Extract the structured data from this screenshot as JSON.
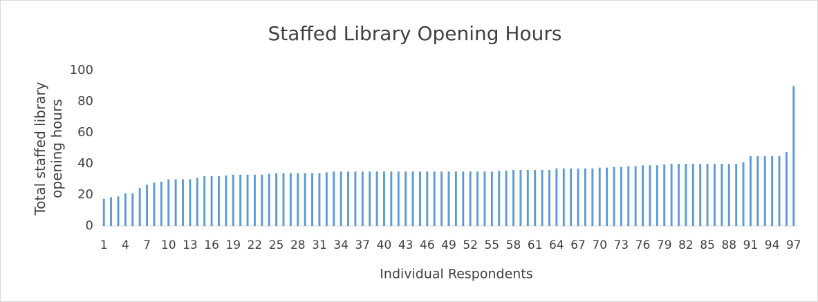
{
  "chart_data": {
    "type": "bar",
    "title": "Staffed Library Opening Hours",
    "x_label": "Individual Respondents",
    "y_label": "Total staffed library opening hours",
    "categories": [
      "1",
      null,
      null,
      "4",
      null,
      null,
      "7",
      null,
      null,
      "10",
      null,
      null,
      "13",
      null,
      null,
      "16",
      null,
      null,
      "19",
      null,
      null,
      "22",
      null,
      null,
      "25",
      null,
      null,
      "28",
      null,
      null,
      "31",
      null,
      null,
      "34",
      null,
      null,
      "37",
      null,
      null,
      "40",
      null,
      null,
      "43",
      null,
      null,
      "46",
      null,
      null,
      "49",
      null,
      null,
      "52",
      null,
      null,
      "55",
      null,
      null,
      "58",
      null,
      null,
      "61",
      null,
      null,
      "64",
      null,
      null,
      "67",
      null,
      null,
      "70",
      null,
      null,
      "73",
      null,
      null,
      "76",
      null,
      null,
      "79",
      null,
      null,
      "82",
      null,
      null,
      "85",
      null,
      null,
      "88",
      null,
      null,
      "91",
      null,
      null,
      "94",
      null,
      null,
      "97"
    ],
    "values": [
      17.5,
      18.5,
      19,
      21,
      21,
      24.5,
      26.5,
      28,
      28.5,
      30,
      30,
      30,
      30,
      31,
      32,
      32,
      32,
      32.5,
      33,
      33,
      33,
      33,
      33,
      33.5,
      34,
      34,
      34,
      34,
      34,
      34,
      34,
      34.5,
      35,
      35,
      35,
      35,
      35,
      35,
      35,
      35,
      35,
      35,
      35,
      35,
      35,
      35,
      35,
      35,
      35,
      35,
      35,
      35,
      35,
      35,
      35,
      35.5,
      35.5,
      36,
      36,
      36,
      36,
      36,
      36,
      37,
      37,
      37,
      37,
      37,
      37,
      37.5,
      37.5,
      38,
      38,
      38.5,
      38.5,
      39,
      39,
      39,
      39.5,
      40,
      40,
      40,
      40,
      40,
      40,
      40,
      40,
      40,
      40,
      41,
      45,
      45,
      45,
      45,
      45,
      47.5,
      90
    ],
    "color": "#5b9bd5",
    "ylim": [
      0,
      100
    ],
    "yticks": [
      0,
      20,
      40,
      60,
      80,
      100
    ],
    "grid": false
  }
}
